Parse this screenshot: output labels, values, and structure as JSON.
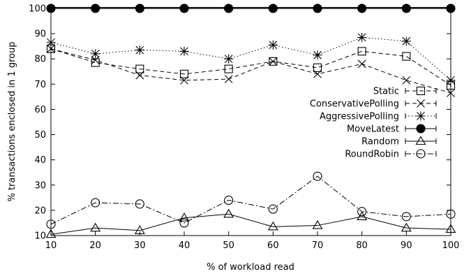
{
  "chart_data": {
    "type": "line",
    "xlabel": "% of workload read",
    "ylabel": "% transactions enclosed in 1 group",
    "xlim": [
      10,
      100
    ],
    "ylim": [
      10,
      100
    ],
    "x_ticks": [
      10,
      20,
      30,
      40,
      50,
      60,
      70,
      80,
      90,
      100
    ],
    "y_ticks": [
      10,
      20,
      30,
      40,
      50,
      60,
      70,
      80,
      90,
      100
    ],
    "grid": false,
    "legend_position": "right",
    "x": [
      10,
      20,
      30,
      40,
      50,
      60,
      70,
      80,
      90,
      100
    ],
    "series": [
      {
        "name": "Static",
        "marker": "square",
        "dash": "dashed",
        "values": [
          84,
          78.5,
          76,
          74,
          76,
          79,
          76.5,
          83,
          81,
          69.5
        ]
      },
      {
        "name": "ConservativePolling",
        "marker": "x",
        "dash": "dashed",
        "values": [
          84,
          79.5,
          73.5,
          71.5,
          72,
          79,
          74,
          78,
          71.5,
          66.5
        ]
      },
      {
        "name": "AggressivePolling",
        "marker": "star",
        "dash": "dotted",
        "values": [
          86.5,
          82,
          83.5,
          83,
          80,
          85.5,
          81.5,
          88.5,
          87,
          71.5
        ]
      },
      {
        "name": "MoveLatest",
        "marker": "filled-circle",
        "dash": "solid",
        "values": [
          100,
          100,
          100,
          100,
          100,
          100,
          100,
          100,
          100,
          100
        ]
      },
      {
        "name": "Random",
        "marker": "triangle",
        "dash": "solid",
        "values": [
          10.5,
          13,
          12,
          17,
          18.5,
          13.5,
          14,
          17.5,
          13,
          12.5
        ]
      },
      {
        "name": "RoundRobin",
        "marker": "circle",
        "dash": "dashdot",
        "values": [
          14.5,
          23,
          22.5,
          15,
          24,
          20.5,
          33.5,
          19.5,
          17.5,
          18.5
        ]
      }
    ]
  }
}
